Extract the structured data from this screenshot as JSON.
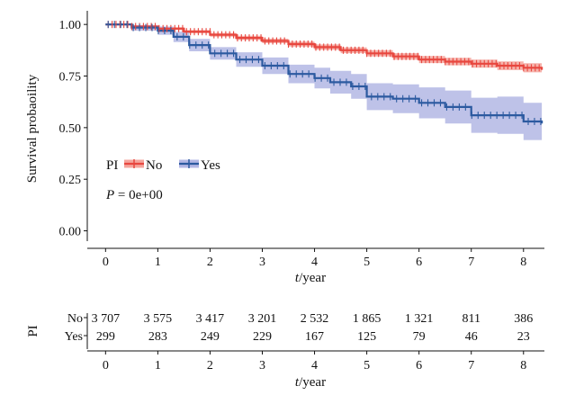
{
  "chart_data": {
    "type": "line",
    "ylabel": "Survival probaoility",
    "xlabel_italic": "t",
    "xlabel_rest": "/year",
    "xlim": [
      -0.35,
      8.4
    ],
    "ylim": [
      -0.05,
      1.04
    ],
    "x_ticks": [
      "0",
      "1",
      "2",
      "3",
      "4",
      "5",
      "6",
      "7",
      "8"
    ],
    "y_ticks": [
      "0.00",
      "0.25",
      "0.50",
      "0.75",
      "1.00"
    ],
    "legend": {
      "title": "PI",
      "entries": [
        {
          "label": "No",
          "color": "#e8473f"
        },
        {
          "label": "Yes",
          "color": "#2c5aa0"
        }
      ]
    },
    "pvalue_label": "P",
    "pvalue_text": " = 0e+00",
    "series": [
      {
        "name": "No",
        "color": "#e8473f",
        "band_color": "#f4a49c",
        "x": [
          0,
          0.5,
          1,
          1.5,
          2,
          2.5,
          3,
          3.5,
          4,
          4.5,
          5,
          5.5,
          6,
          6.5,
          7,
          7.5,
          8,
          8.35
        ],
        "y": [
          1.0,
          0.99,
          0.98,
          0.965,
          0.95,
          0.935,
          0.92,
          0.905,
          0.89,
          0.875,
          0.86,
          0.845,
          0.83,
          0.82,
          0.81,
          0.8,
          0.79,
          0.78
        ],
        "lower": [
          1.0,
          0.985,
          0.973,
          0.957,
          0.941,
          0.925,
          0.909,
          0.893,
          0.877,
          0.861,
          0.845,
          0.829,
          0.813,
          0.802,
          0.79,
          0.779,
          0.768,
          0.757
        ],
        "upper": [
          1.0,
          0.995,
          0.987,
          0.973,
          0.959,
          0.945,
          0.931,
          0.917,
          0.903,
          0.889,
          0.875,
          0.861,
          0.847,
          0.838,
          0.83,
          0.821,
          0.812,
          0.803
        ]
      },
      {
        "name": "Yes",
        "color": "#2c5aa0",
        "band_color": "#b3b7e4",
        "x": [
          0,
          0.5,
          1,
          1.3,
          1.6,
          2,
          2.5,
          3,
          3.5,
          4,
          4.3,
          4.7,
          5,
          5.5,
          6,
          6.5,
          7,
          7.5,
          8,
          8.35
        ],
        "y": [
          1.0,
          0.985,
          0.97,
          0.94,
          0.9,
          0.86,
          0.83,
          0.8,
          0.76,
          0.74,
          0.72,
          0.7,
          0.65,
          0.64,
          0.62,
          0.6,
          0.56,
          0.56,
          0.53,
          0.52
        ],
        "lower": [
          1.0,
          0.97,
          0.95,
          0.915,
          0.87,
          0.83,
          0.795,
          0.76,
          0.715,
          0.69,
          0.665,
          0.64,
          0.585,
          0.57,
          0.545,
          0.52,
          0.475,
          0.47,
          0.44,
          0.43
        ],
        "upper": [
          1.0,
          0.997,
          0.99,
          0.965,
          0.93,
          0.89,
          0.865,
          0.84,
          0.805,
          0.79,
          0.775,
          0.76,
          0.715,
          0.71,
          0.695,
          0.68,
          0.645,
          0.65,
          0.62,
          0.61
        ]
      }
    ],
    "risk_table": {
      "group_label": "PI",
      "rows": [
        {
          "label": "No",
          "values": [
            "3 707",
            "3 575",
            "3 417",
            "3 201",
            "2 532",
            "1 865",
            "1 321",
            "811",
            "386"
          ]
        },
        {
          "label": "Yes",
          "values": [
            "299",
            "283",
            "249",
            "229",
            "167",
            "125",
            "79",
            "46",
            "23"
          ]
        }
      ]
    }
  }
}
